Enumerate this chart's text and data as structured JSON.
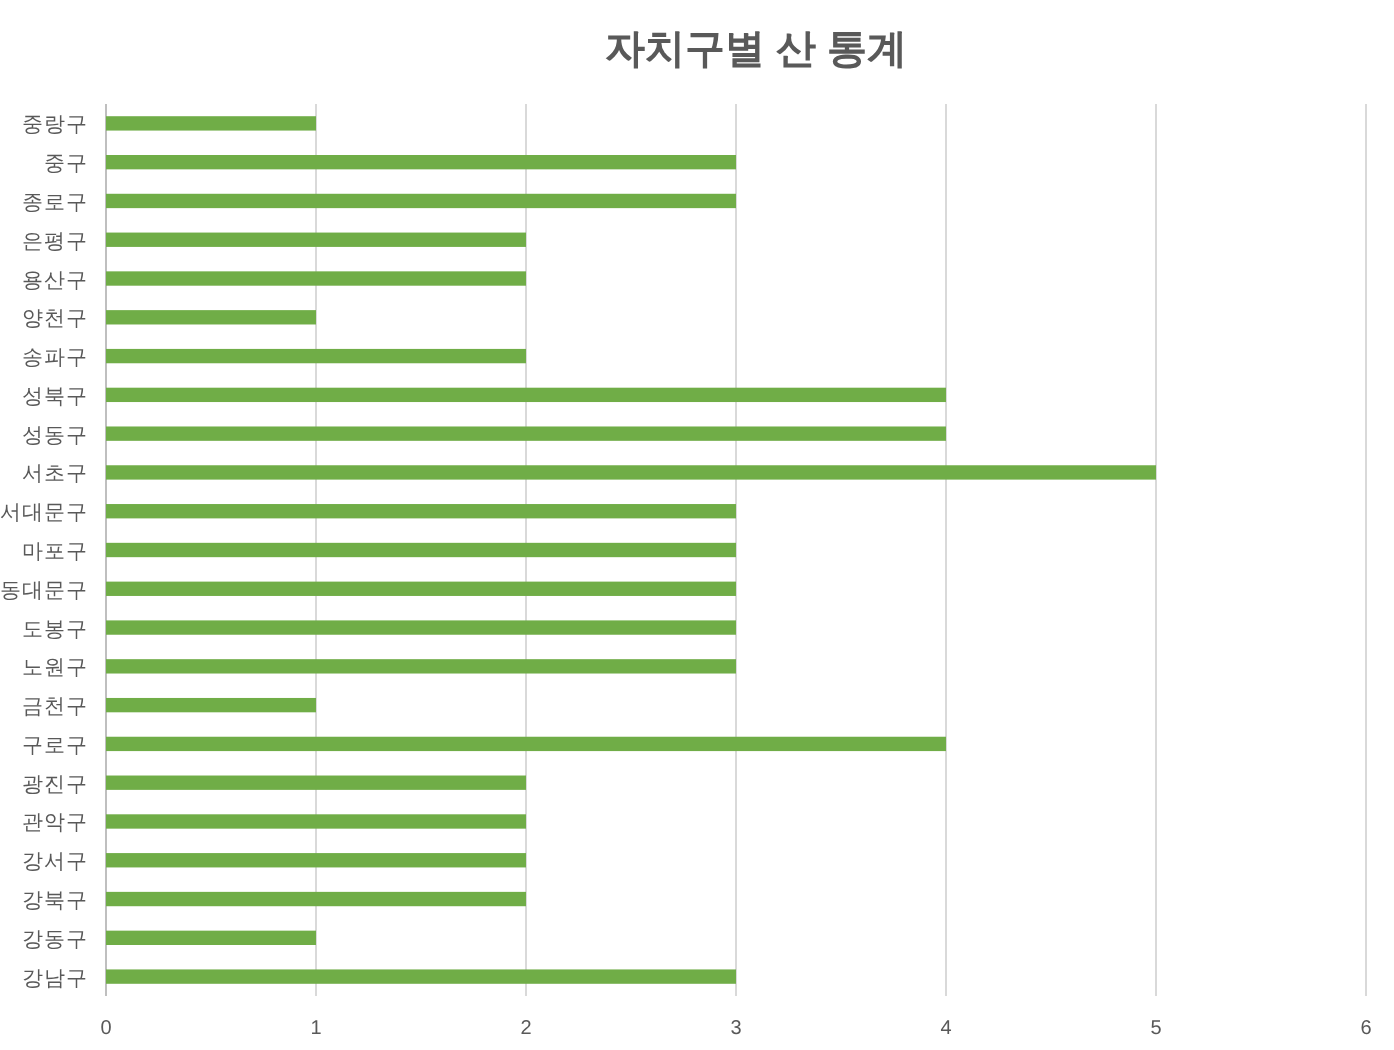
{
  "chart_data": {
    "type": "bar",
    "orientation": "horizontal",
    "title": "자치구별 산 통계",
    "categories": [
      "중랑구",
      "중구",
      "종로구",
      "은평구",
      "용산구",
      "양천구",
      "송파구",
      "성북구",
      "성동구",
      "서초구",
      "서대문구",
      "마포구",
      "동대문구",
      "도봉구",
      "노원구",
      "금천구",
      "구로구",
      "광진구",
      "관악구",
      "강서구",
      "강북구",
      "강동구",
      "강남구"
    ],
    "values": [
      1,
      3,
      3,
      2,
      2,
      1,
      2,
      4,
      4,
      5,
      3,
      3,
      3,
      3,
      3,
      1,
      4,
      2,
      2,
      2,
      2,
      1,
      3
    ],
    "color": "#70ad47",
    "xlim": [
      0,
      6
    ],
    "xticks": [
      0,
      1,
      2,
      3,
      4,
      5,
      6
    ],
    "grid": "x"
  }
}
